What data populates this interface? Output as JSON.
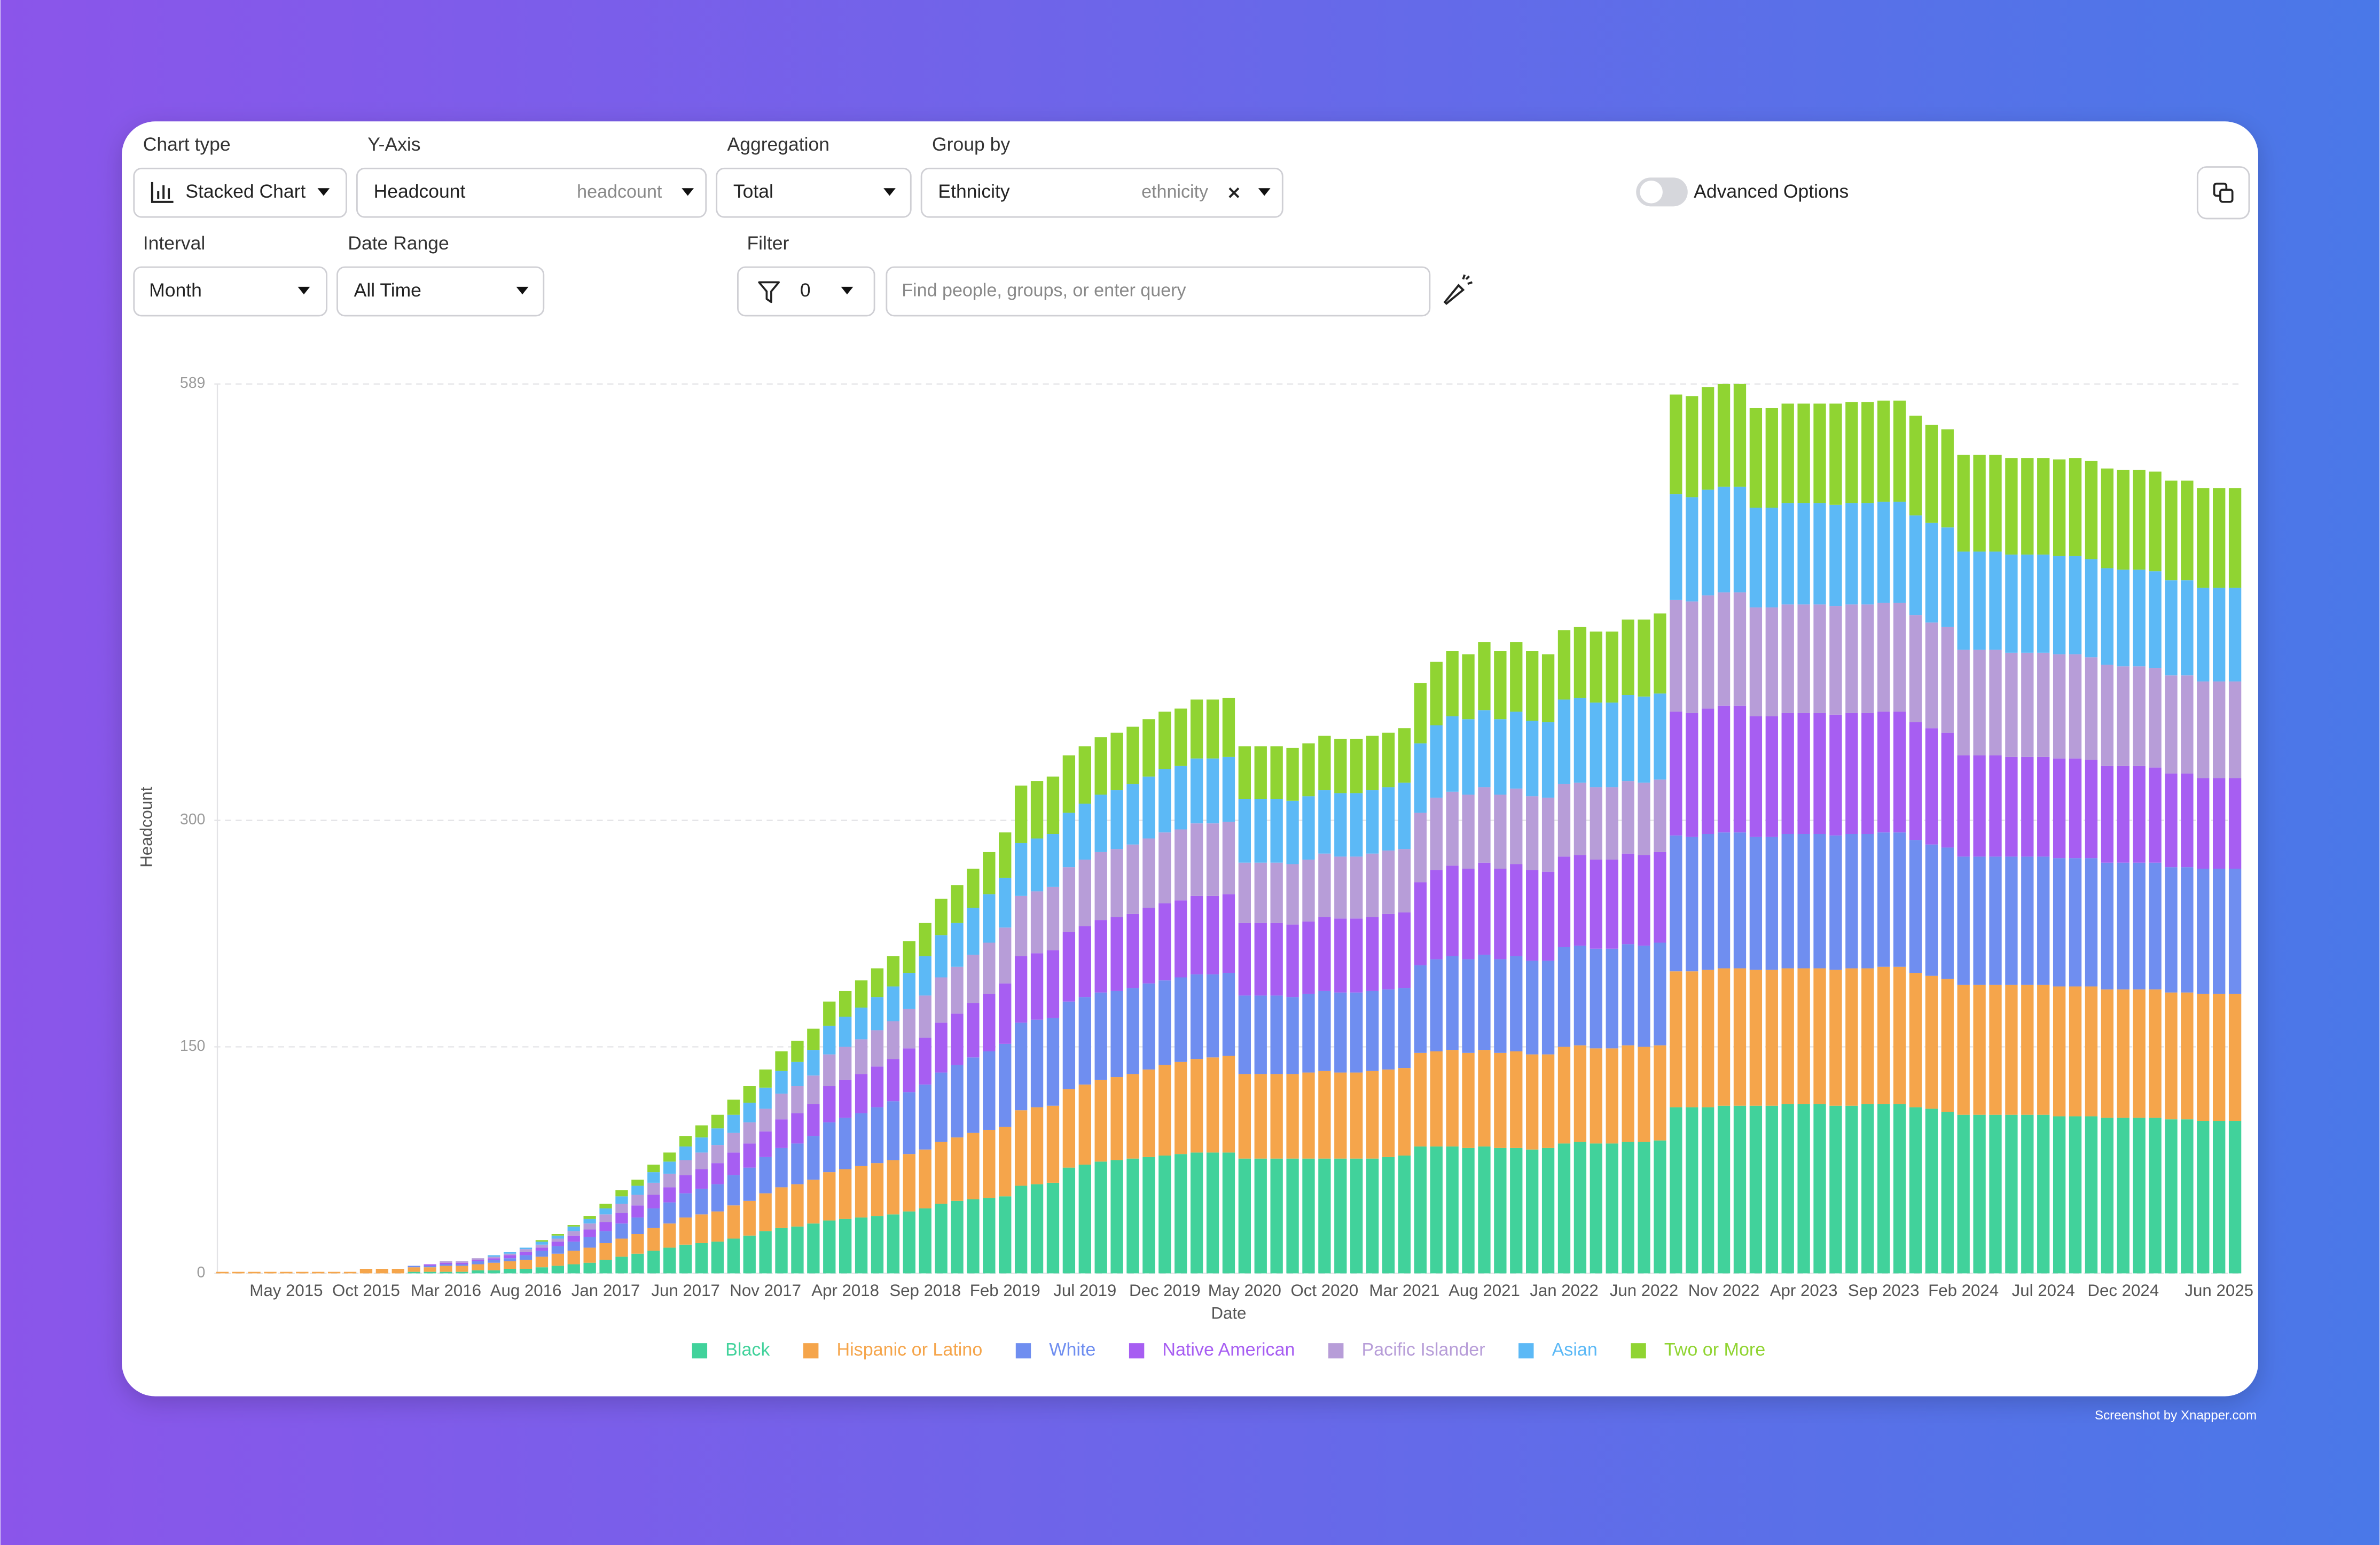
{
  "controls": {
    "chart_type": {
      "label": "Chart type",
      "value": "Stacked Chart"
    },
    "y_axis": {
      "label": "Y-Axis",
      "value": "Headcount",
      "field": "headcount"
    },
    "aggregation": {
      "label": "Aggregation",
      "value": "Total"
    },
    "group_by": {
      "label": "Group by",
      "value": "Ethnicity",
      "field": "ethnicity"
    },
    "advanced_options": "Advanced Options",
    "interval": {
      "label": "Interval",
      "value": "Month"
    },
    "date_range": {
      "label": "Date Range",
      "value": "All Time"
    },
    "filter": {
      "label": "Filter",
      "count": 0,
      "placeholder": "Find people, groups, or enter query"
    }
  },
  "footer": "Screenshot by Xnapper.com",
  "chart_data": {
    "type": "stacked_bar",
    "xlabel": "Date",
    "ylabel": "Headcount",
    "ylim": [
      0,
      589
    ],
    "yticks": [
      0,
      150,
      300,
      589
    ],
    "grid": true,
    "legend": "bottom",
    "categories": [
      null,
      null,
      null,
      null,
      "May 2015",
      null,
      null,
      null,
      null,
      "Oct 2015",
      null,
      null,
      null,
      null,
      "Mar 2016",
      null,
      null,
      null,
      null,
      "Aug 2016",
      null,
      null,
      null,
      null,
      "Jan 2017",
      null,
      null,
      null,
      null,
      "Jun 2017",
      null,
      null,
      null,
      null,
      "Nov 2017",
      null,
      null,
      null,
      null,
      "Apr 2018",
      null,
      null,
      null,
      null,
      "Sep 2018",
      null,
      null,
      null,
      null,
      "Feb 2019",
      null,
      null,
      null,
      null,
      "Jul 2019",
      null,
      null,
      null,
      null,
      "Dec 2019",
      null,
      null,
      null,
      null,
      "May 2020",
      null,
      null,
      null,
      null,
      "Oct 2020",
      null,
      null,
      null,
      null,
      "Mar 2021",
      null,
      null,
      null,
      null,
      "Aug 2021",
      null,
      null,
      null,
      null,
      "Jan 2022",
      null,
      null,
      null,
      null,
      "Jun 2022",
      null,
      null,
      null,
      null,
      "Nov 2022",
      null,
      null,
      null,
      null,
      "Apr 2023",
      null,
      null,
      null,
      null,
      "Sep 2023",
      null,
      null,
      null,
      null,
      "Feb 2024",
      null,
      null,
      null,
      null,
      "Jul 2024",
      null,
      null,
      null,
      null,
      "Dec 2024",
      null,
      null,
      null,
      null,
      null,
      "Jun 2025",
      null
    ],
    "series": [
      {
        "name": "Black",
        "color": "#41d29b",
        "values": [
          0,
          0,
          0,
          0,
          0,
          0,
          0,
          0,
          0,
          0,
          0,
          0,
          1,
          1,
          1,
          1,
          2,
          2,
          3,
          3,
          4,
          5,
          6,
          7,
          9,
          11,
          13,
          15,
          17,
          19,
          20,
          21,
          23,
          25,
          28,
          30,
          31,
          33,
          35,
          36,
          37,
          38,
          39,
          41,
          43,
          46,
          48,
          49,
          50,
          51,
          58,
          59,
          60,
          70,
          72,
          74,
          75,
          76,
          77,
          78,
          79,
          80,
          80,
          80,
          76,
          76,
          76,
          76,
          76,
          76,
          76,
          76,
          76,
          77,
          78,
          84,
          84,
          84,
          83,
          84,
          83,
          83,
          82,
          83,
          86,
          87,
          86,
          86,
          87,
          87,
          88,
          110,
          110,
          110,
          111,
          111,
          111,
          111,
          112,
          112,
          112,
          111,
          111,
          112,
          112,
          112,
          110,
          109,
          107,
          105,
          105,
          105,
          105,
          105,
          105,
          104,
          104,
          104,
          103,
          103,
          103,
          103,
          102,
          102,
          101,
          101,
          101
        ]
      },
      {
        "name": "Hispanic or Latino",
        "color": "#f5a54b",
        "values": [
          1,
          1,
          1,
          1,
          1,
          1,
          1,
          1,
          1,
          3,
          3,
          3,
          3,
          3,
          4,
          4,
          4,
          5,
          5,
          6,
          7,
          8,
          9,
          10,
          11,
          12,
          13,
          15,
          16,
          18,
          19,
          20,
          22,
          23,
          25,
          27,
          28,
          29,
          32,
          33,
          34,
          35,
          36,
          38,
          39,
          41,
          42,
          44,
          45,
          46,
          50,
          51,
          51,
          52,
          53,
          54,
          55,
          56,
          58,
          60,
          61,
          62,
          63,
          64,
          56,
          56,
          56,
          56,
          57,
          58,
          57,
          57,
          58,
          58,
          58,
          62,
          63,
          64,
          63,
          64,
          63,
          64,
          63,
          62,
          64,
          64,
          63,
          63,
          64,
          63,
          63,
          90,
          90,
          91,
          91,
          91,
          90,
          90,
          90,
          90,
          90,
          90,
          91,
          90,
          91,
          91,
          89,
          88,
          88,
          86,
          86,
          86,
          86,
          86,
          86,
          86,
          86,
          86,
          85,
          85,
          85,
          85,
          84,
          84,
          84,
          84,
          84
        ]
      },
      {
        "name": "White",
        "color": "#6f8ef0",
        "values": [
          0,
          0,
          0,
          0,
          0,
          0,
          0,
          0,
          0,
          0,
          0,
          0,
          1,
          1,
          1,
          1,
          2,
          2,
          2,
          3,
          4,
          5,
          6,
          7,
          8,
          10,
          11,
          13,
          14,
          16,
          17,
          18,
          20,
          22,
          24,
          26,
          27,
          29,
          33,
          34,
          35,
          37,
          39,
          41,
          43,
          46,
          48,
          50,
          52,
          55,
          58,
          58,
          58,
          58,
          58,
          58,
          57,
          57,
          57,
          56,
          56,
          56,
          55,
          55,
          52,
          52,
          52,
          51,
          52,
          53,
          53,
          53,
          53,
          53,
          53,
          58,
          61,
          62,
          62,
          63,
          62,
          63,
          62,
          62,
          66,
          66,
          66,
          66,
          67,
          67,
          68,
          90,
          89,
          90,
          90,
          90,
          88,
          88,
          89,
          89,
          89,
          89,
          89,
          89,
          89,
          89,
          88,
          87,
          87,
          85,
          85,
          85,
          85,
          85,
          85,
          85,
          85,
          85,
          84,
          84,
          84,
          84,
          83,
          83,
          83,
          83,
          83
        ]
      },
      {
        "name": "Native American",
        "color": "#a75ef2",
        "values": [
          0,
          0,
          0,
          0,
          0,
          0,
          0,
          0,
          0,
          0,
          0,
          0,
          0,
          1,
          1,
          1,
          1,
          1,
          2,
          2,
          2,
          3,
          4,
          5,
          6,
          7,
          8,
          9,
          10,
          12,
          13,
          14,
          15,
          16,
          17,
          19,
          20,
          21,
          24,
          25,
          26,
          27,
          28,
          29,
          31,
          33,
          34,
          36,
          38,
          40,
          44,
          44,
          45,
          46,
          47,
          48,
          49,
          49,
          50,
          51,
          51,
          52,
          52,
          52,
          48,
          48,
          48,
          48,
          48,
          49,
          49,
          49,
          49,
          50,
          50,
          55,
          59,
          60,
          60,
          61,
          60,
          61,
          60,
          59,
          60,
          60,
          59,
          59,
          60,
          60,
          60,
          82,
          82,
          83,
          84,
          84,
          80,
          80,
          80,
          80,
          80,
          80,
          80,
          80,
          80,
          80,
          78,
          77,
          76,
          67,
          67,
          67,
          66,
          66,
          66,
          66,
          66,
          65,
          64,
          64,
          64,
          63,
          62,
          62,
          60,
          60,
          60
        ]
      },
      {
        "name": "Pacific Islander",
        "color": "#b79dd8",
        "values": [
          0,
          0,
          0,
          0,
          0,
          0,
          0,
          0,
          0,
          0,
          0,
          0,
          0,
          0,
          1,
          1,
          1,
          1,
          1,
          2,
          2,
          2,
          3,
          4,
          5,
          6,
          7,
          8,
          9,
          10,
          11,
          12,
          13,
          14,
          15,
          17,
          18,
          19,
          21,
          22,
          23,
          24,
          25,
          26,
          28,
          30,
          31,
          32,
          34,
          37,
          40,
          41,
          42,
          43,
          44,
          45,
          45,
          46,
          46,
          47,
          47,
          48,
          48,
          48,
          40,
          40,
          40,
          40,
          41,
          42,
          41,
          41,
          42,
          42,
          42,
          46,
          48,
          49,
          49,
          50,
          49,
          50,
          49,
          49,
          48,
          48,
          48,
          48,
          48,
          48,
          48,
          74,
          74,
          75,
          75,
          75,
          72,
          72,
          72,
          72,
          72,
          72,
          72,
          72,
          72,
          72,
          71,
          70,
          70,
          70,
          70,
          70,
          69,
          69,
          69,
          69,
          69,
          68,
          67,
          66,
          66,
          66,
          65,
          65,
          64,
          64,
          64
        ]
      },
      {
        "name": "Asian",
        "color": "#5cb9f6",
        "values": [
          0,
          0,
          0,
          0,
          0,
          0,
          0,
          0,
          0,
          0,
          0,
          0,
          0,
          0,
          0,
          0,
          0,
          1,
          1,
          1,
          2,
          2,
          3,
          3,
          4,
          5,
          6,
          7,
          8,
          9,
          10,
          11,
          12,
          13,
          14,
          15,
          16,
          17,
          19,
          20,
          21,
          22,
          23,
          24,
          26,
          28,
          29,
          31,
          32,
          33,
          35,
          35,
          35,
          36,
          37,
          38,
          39,
          40,
          41,
          42,
          42,
          43,
          43,
          43,
          42,
          42,
          42,
          42,
          42,
          42,
          42,
          42,
          42,
          42,
          44,
          46,
          48,
          50,
          50,
          51,
          50,
          51,
          50,
          50,
          56,
          56,
          56,
          56,
          57,
          57,
          57,
          70,
          69,
          70,
          70,
          70,
          66,
          66,
          67,
          67,
          67,
          67,
          67,
          67,
          67,
          67,
          66,
          66,
          66,
          65,
          65,
          65,
          65,
          65,
          65,
          65,
          65,
          65,
          64,
          64,
          64,
          64,
          63,
          63,
          62,
          62,
          62
        ]
      },
      {
        "name": "Two or More",
        "color": "#90d432",
        "values": [
          0,
          0,
          0,
          0,
          0,
          0,
          0,
          0,
          0,
          0,
          0,
          0,
          0,
          0,
          0,
          0,
          0,
          0,
          0,
          0,
          1,
          1,
          1,
          2,
          3,
          4,
          4,
          5,
          6,
          7,
          8,
          9,
          10,
          11,
          12,
          13,
          14,
          14,
          16,
          17,
          18,
          19,
          20,
          21,
          22,
          24,
          25,
          26,
          28,
          30,
          38,
          38,
          38,
          38,
          38,
          38,
          38,
          38,
          38,
          38,
          38,
          39,
          39,
          39,
          35,
          35,
          35,
          35,
          35,
          36,
          36,
          36,
          36,
          36,
          36,
          40,
          42,
          43,
          43,
          45,
          45,
          46,
          46,
          45,
          46,
          47,
          47,
          47,
          50,
          51,
          53,
          66,
          67,
          68,
          68,
          68,
          66,
          66,
          66,
          66,
          66,
          67,
          67,
          67,
          67,
          67,
          66,
          65,
          65,
          64,
          64,
          64,
          64,
          64,
          64,
          64,
          65,
          65,
          66,
          66,
          66,
          66,
          66,
          66,
          66,
          66,
          66
        ]
      }
    ]
  }
}
